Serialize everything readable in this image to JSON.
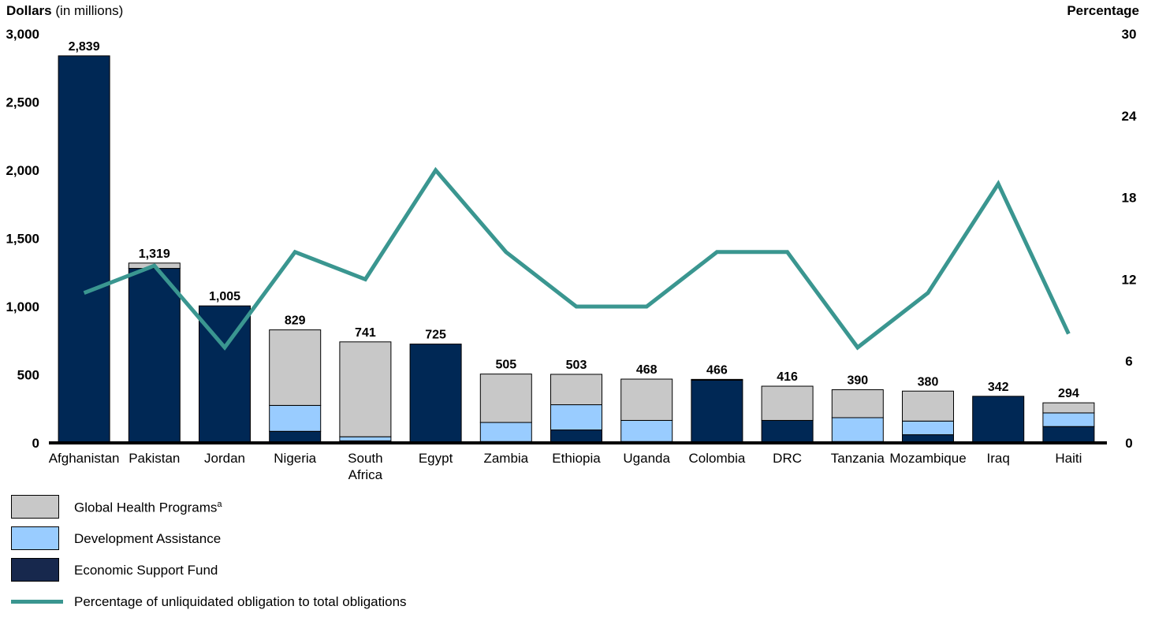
{
  "chart_data": {
    "type": "bar",
    "stacked": true,
    "title": "",
    "ylabel": {
      "bold": "Dollars",
      "rest": "(in millions)"
    },
    "y2label": "Percentage",
    "ylim": [
      0,
      3000
    ],
    "y2lim": [
      0,
      30
    ],
    "yticks": [
      "0",
      "500",
      "1,000",
      "1,500",
      "2,000",
      "2,500",
      "3,000"
    ],
    "y2ticks": [
      "0",
      "6",
      "12",
      "18",
      "24",
      "30"
    ],
    "categories": [
      "Afghanistan",
      "Pakistan",
      "Jordan",
      "Nigeria",
      "South Africa",
      "Egypt",
      "Zambia",
      "Ethiopia",
      "Uganda",
      "Colombia",
      "DRC",
      "Tanzania",
      "Mozambique",
      "Iraq",
      "Haiti"
    ],
    "category_lines": [
      [
        "Afghanistan"
      ],
      [
        "Pakistan"
      ],
      [
        "Jordan"
      ],
      [
        "Nigeria"
      ],
      [
        "South",
        "Africa"
      ],
      [
        "Egypt"
      ],
      [
        "Zambia"
      ],
      [
        "Ethiopia"
      ],
      [
        "Uganda"
      ],
      [
        "Colombia"
      ],
      [
        "DRC"
      ],
      [
        "Tanzania"
      ],
      [
        "Mozambique"
      ],
      [
        "Iraq"
      ],
      [
        "Haiti"
      ]
    ],
    "totals": [
      "2,839",
      "1,319",
      "1,005",
      "829",
      "741",
      "725",
      "505",
      "503",
      "468",
      "466",
      "416",
      "390",
      "380",
      "342",
      "294"
    ],
    "series": [
      {
        "name": "Economic Support Fund",
        "color": "#002855",
        "values": [
          2839,
          1280,
          1005,
          85,
          15,
          725,
          10,
          95,
          10,
          460,
          165,
          10,
          60,
          342,
          120
        ]
      },
      {
        "name": "Development Assistance",
        "color": "#99ccff",
        "values": [
          0,
          0,
          0,
          190,
          30,
          0,
          140,
          185,
          155,
          0,
          0,
          175,
          100,
          0,
          100
        ]
      },
      {
        "name": "Global Health Programs",
        "color": "#c8c8c8",
        "values": [
          0,
          39,
          0,
          554,
          696,
          0,
          355,
          223,
          303,
          6,
          251,
          205,
          220,
          0,
          74
        ]
      }
    ],
    "line": {
      "name": "Percentage of unliquidated obligation to total obligations",
      "color": "#3a9690",
      "values": [
        11,
        13,
        7,
        14,
        12,
        20,
        14,
        10,
        10,
        14,
        14,
        7,
        11,
        19,
        8
      ]
    }
  },
  "legend": [
    {
      "label": "Global Health Programs",
      "sup": "a",
      "color": "#c8c8c8",
      "kind": "box"
    },
    {
      "label": "Development Assistance",
      "sup": "",
      "color": "#99ccff",
      "kind": "box"
    },
    {
      "label": "Economic Support Fund",
      "sup": "",
      "color": "#17284d",
      "kind": "box"
    },
    {
      "label": "Percentage of unliquidated obligation to total obligations",
      "sup": "",
      "color": "#3a9690",
      "kind": "line"
    }
  ]
}
